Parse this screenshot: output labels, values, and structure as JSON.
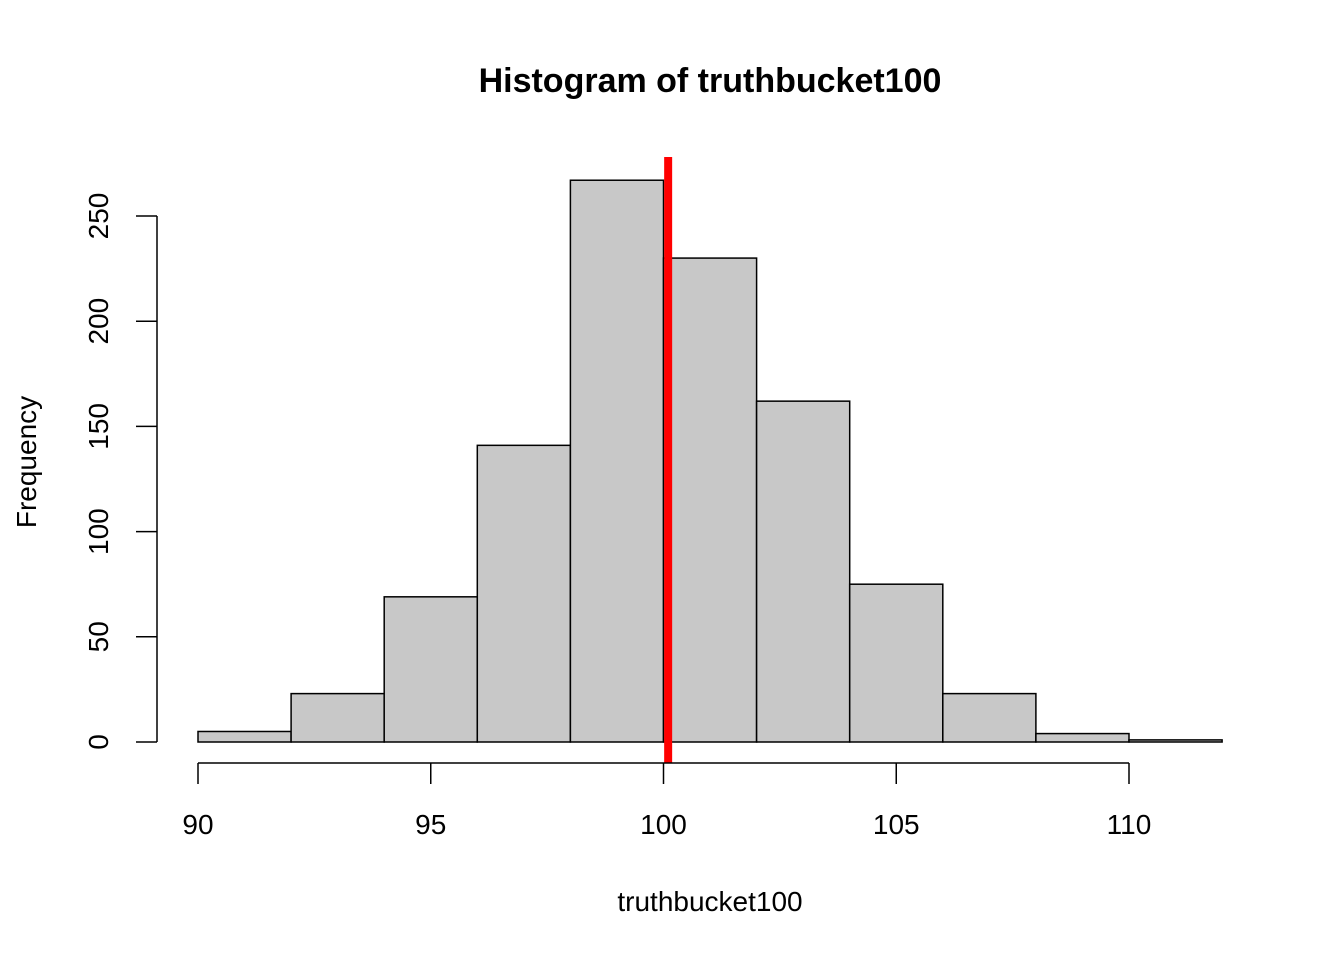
{
  "chart_data": {
    "type": "bar",
    "title": "Histogram of truthbucket100",
    "xlabel": "truthbucket100",
    "ylabel": "Frequency",
    "bins": [
      {
        "x0": 90,
        "x1": 92,
        "count": 5
      },
      {
        "x0": 92,
        "x1": 94,
        "count": 23
      },
      {
        "x0": 94,
        "x1": 96,
        "count": 69
      },
      {
        "x0": 96,
        "x1": 98,
        "count": 141
      },
      {
        "x0": 98,
        "x1": 100,
        "count": 267
      },
      {
        "x0": 100,
        "x1": 102,
        "count": 230
      },
      {
        "x0": 102,
        "x1": 104,
        "count": 162
      },
      {
        "x0": 104,
        "x1": 106,
        "count": 75
      },
      {
        "x0": 106,
        "x1": 108,
        "count": 23
      },
      {
        "x0": 108,
        "x1": 110,
        "count": 4
      },
      {
        "x0": 110,
        "x1": 112,
        "count": 1
      }
    ],
    "xlim": [
      90,
      112
    ],
    "ylim": [
      0,
      270
    ],
    "xticks": [
      90,
      95,
      100,
      105,
      110
    ],
    "xtick_labels": [
      "90",
      "95",
      "100",
      "105",
      "110"
    ],
    "yticks": [
      0,
      50,
      100,
      150,
      200,
      250
    ],
    "ytick_labels": [
      "0",
      "50",
      "100",
      "150",
      "200",
      "250"
    ],
    "vline": {
      "x": 100.1,
      "color": "#ff0000"
    },
    "bar_fill": "#c8c8c8",
    "bar_stroke": "#000000",
    "grid": false,
    "legend": "none"
  }
}
